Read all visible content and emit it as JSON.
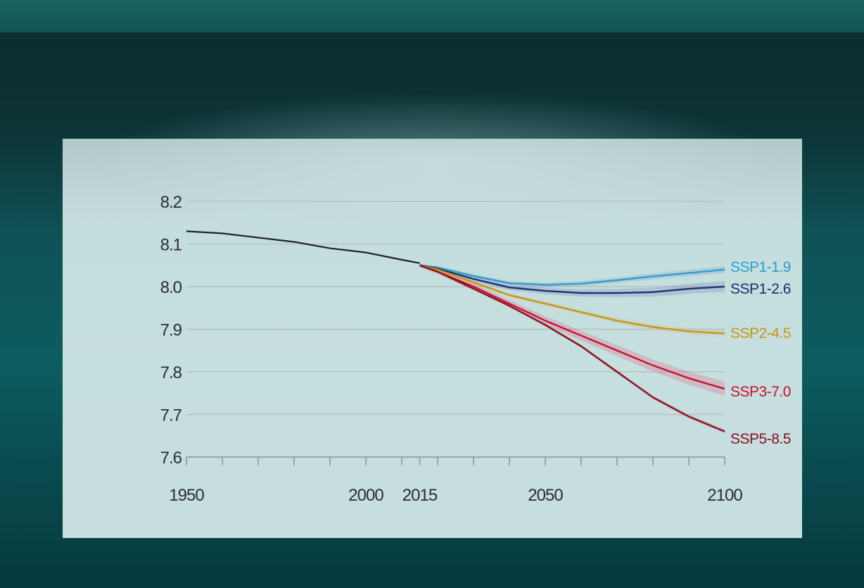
{
  "chart_data": {
    "type": "line",
    "title": "",
    "xlabel": "",
    "ylabel": "",
    "xlim": [
      1950,
      2100
    ],
    "ylim": [
      7.6,
      8.2
    ],
    "grid": true,
    "x_ticks": [
      1950,
      2000,
      2015,
      2050,
      2100
    ],
    "y_ticks": [
      "8.2",
      "8.1",
      "8.0",
      "7.9",
      "7.8",
      "7.7",
      "7.6"
    ],
    "historical": {
      "x": [
        1950,
        1960,
        1970,
        1980,
        1990,
        2000,
        2010,
        2015
      ],
      "y": [
        8.13,
        8.125,
        8.115,
        8.105,
        8.09,
        8.08,
        8.063,
        8.055
      ]
    },
    "series": [
      {
        "name": "SSP1-1.9",
        "color": "#2b9fd0",
        "x": [
          2015,
          2020,
          2030,
          2040,
          2050,
          2060,
          2070,
          2080,
          2090,
          2100
        ],
        "y": [
          8.05,
          8.045,
          8.025,
          8.008,
          8.004,
          8.007,
          8.015,
          8.024,
          8.032,
          8.04
        ]
      },
      {
        "name": "SSP1-2.6",
        "color": "#1f2f6e",
        "x": [
          2015,
          2020,
          2030,
          2040,
          2050,
          2060,
          2070,
          2080,
          2090,
          2100
        ],
        "y": [
          8.05,
          8.042,
          8.018,
          7.998,
          7.99,
          7.985,
          7.985,
          7.987,
          7.995,
          8.0
        ]
      },
      {
        "name": "SSP2-4.5",
        "color": "#c9950f",
        "x": [
          2015,
          2020,
          2030,
          2040,
          2050,
          2060,
          2070,
          2080,
          2090,
          2100
        ],
        "y": [
          8.05,
          8.04,
          8.01,
          7.98,
          7.96,
          7.94,
          7.92,
          7.905,
          7.895,
          7.89
        ]
      },
      {
        "name": "SSP3-7.0",
        "color": "#c8102e",
        "x": [
          2015,
          2020,
          2030,
          2040,
          2050,
          2060,
          2070,
          2080,
          2090,
          2100
        ],
        "y": [
          8.05,
          8.035,
          8.0,
          7.96,
          7.92,
          7.885,
          7.85,
          7.815,
          7.785,
          7.76
        ]
      },
      {
        "name": "SSP5-8.5",
        "color": "#8a1023",
        "x": [
          2015,
          2020,
          2030,
          2040,
          2050,
          2060,
          2070,
          2080,
          2090,
          2100
        ],
        "y": [
          8.05,
          8.035,
          7.995,
          7.955,
          7.91,
          7.86,
          7.8,
          7.74,
          7.695,
          7.66
        ]
      }
    ]
  }
}
